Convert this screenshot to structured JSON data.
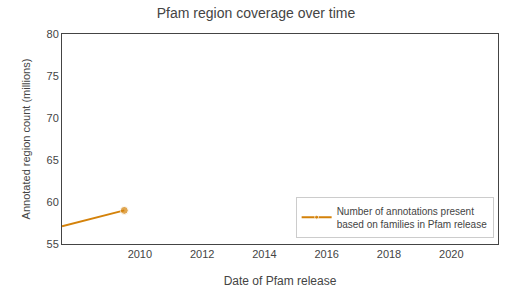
{
  "chart_data": {
    "type": "line",
    "title": "Pfam region coverage over time",
    "x_label": "Date of Pfam release",
    "y_label": "Annotated region count (millions)",
    "x": [
      2007.5,
      2009.5
    ],
    "series": [
      {
        "name": "Number of annotations present\nbased on families in Pfam release",
        "color": "#D4820A",
        "marker": "circle",
        "values": [
          57.1,
          59.0
        ]
      }
    ],
    "xlim": [
      2007.5,
      2021.5
    ],
    "ylim": [
      55,
      80
    ],
    "xticks": [
      2010,
      2012,
      2014,
      2016,
      2018,
      2020
    ],
    "yticks": [
      55,
      60,
      65,
      70,
      75,
      80
    ],
    "legend": "lower right",
    "grid": false
  }
}
